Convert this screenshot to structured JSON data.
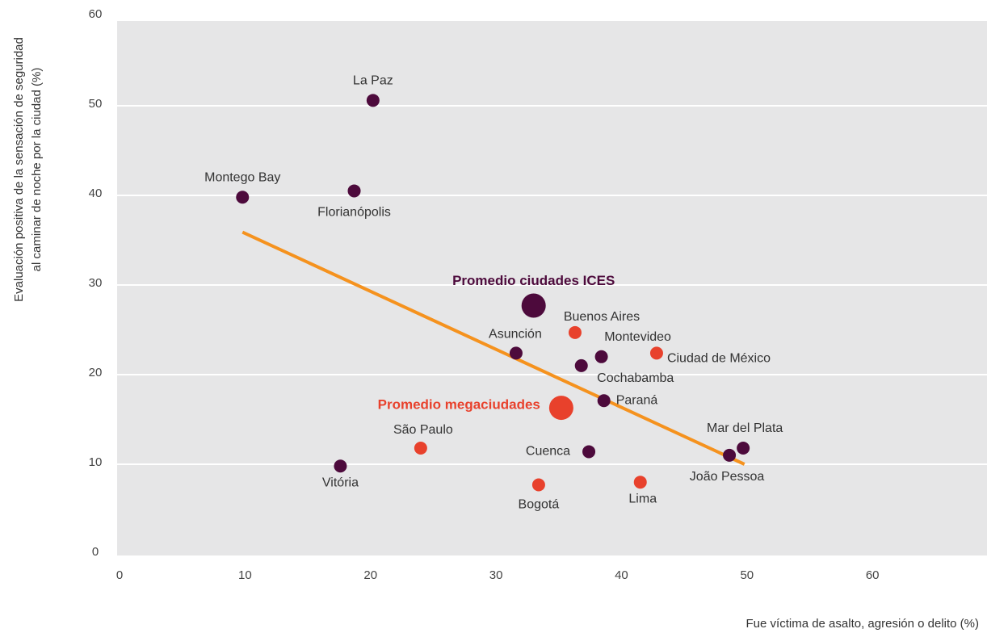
{
  "chart_data": {
    "type": "scatter",
    "y_label": [
      "Evaluación positiva de la sensación de seguridad",
      "al caminar de noche por la ciudad  (%)"
    ],
    "x_label": "Fue víctima de asalto, agresión o delito (%)",
    "xlim": [
      0,
      69
    ],
    "ylim": [
      0,
      60
    ],
    "xticks": [
      0,
      10,
      20,
      30,
      40,
      50,
      60
    ],
    "yticks": [
      0,
      10,
      20,
      30,
      40,
      50,
      60
    ],
    "grid": true,
    "series": [
      {
        "color": "#4d0a3c",
        "labels": [
          "La Paz",
          "Montego Bay",
          "Florianópolis",
          "Asunción",
          "Montevideo",
          "Cochabamba",
          "Paraná",
          "Cuenca",
          "Mar del Plata",
          "João Pessoa",
          "Vitória"
        ],
        "x": [
          20.2,
          9.8,
          18.7,
          31.6,
          38.4,
          36.8,
          38.6,
          37.4,
          49.7,
          48.6,
          17.6
        ],
        "y": [
          50.6,
          39.8,
          40.5,
          22.4,
          22.0,
          21.0,
          17.1,
          11.4,
          11.8,
          11.0,
          9.8
        ]
      },
      {
        "color": "#e8412c",
        "labels": [
          "Buenos Aires",
          "Ciudad de México",
          "São Paulo",
          "Bogotá",
          "Lima"
        ],
        "x": [
          36.3,
          42.8,
          24.0,
          33.4,
          41.5
        ],
        "y": [
          24.7,
          22.4,
          11.8,
          7.7,
          8.0
        ]
      }
    ],
    "averages": [
      {
        "label": "Promedio ciudades ICES",
        "x": 33.0,
        "y": 27.7,
        "color": "#4d0a3c"
      },
      {
        "label": "Promedio megaciudades",
        "x": 35.2,
        "y": 16.3,
        "color": "#e8412c"
      }
    ],
    "trend": {
      "color": "#f5921e",
      "x": [
        9.8,
        49.8
      ],
      "y": [
        35.9,
        10.0
      ]
    }
  }
}
